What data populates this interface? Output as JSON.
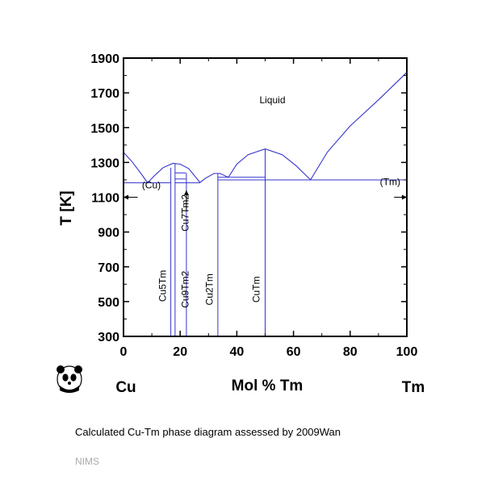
{
  "chart_data": {
    "type": "line",
    "ylabel": "T [K]",
    "xlabel": "Mol % Tm",
    "x_left_element": "Cu",
    "x_right_element": "Tm",
    "xlim": [
      0,
      100
    ],
    "ylim": [
      300,
      1900
    ],
    "xticks": [
      0,
      20,
      40,
      60,
      80,
      100
    ],
    "yticks": [
      300,
      500,
      700,
      900,
      1100,
      1300,
      1500,
      1700,
      1900
    ],
    "line_color": "#3333cc",
    "liquidus": [
      {
        "x": 0,
        "y": 1358
      },
      {
        "x": 3,
        "y": 1305
      },
      {
        "x": 6,
        "y": 1240
      },
      {
        "x": 8.5,
        "y": 1183
      },
      {
        "x": 11,
        "y": 1225
      },
      {
        "x": 14,
        "y": 1270
      },
      {
        "x": 17.5,
        "y": 1295
      },
      {
        "x": 20,
        "y": 1290
      },
      {
        "x": 23,
        "y": 1265
      },
      {
        "x": 27,
        "y": 1185
      },
      {
        "x": 29,
        "y": 1210
      },
      {
        "x": 32,
        "y": 1237
      },
      {
        "x": 34,
        "y": 1237
      },
      {
        "x": 37,
        "y": 1215
      },
      {
        "x": 40,
        "y": 1290
      },
      {
        "x": 44,
        "y": 1345
      },
      {
        "x": 50,
        "y": 1378
      },
      {
        "x": 56,
        "y": 1345
      },
      {
        "x": 61,
        "y": 1280
      },
      {
        "x": 66,
        "y": 1200
      },
      {
        "x": 72,
        "y": 1360
      },
      {
        "x": 80,
        "y": 1510
      },
      {
        "x": 90,
        "y": 1660
      },
      {
        "x": 100,
        "y": 1818
      }
    ],
    "invariant_lines": [
      {
        "x1": 0,
        "x2": 16.7,
        "y": 1183
      },
      {
        "x1": 18.2,
        "x2": 27,
        "y": 1183
      },
      {
        "x1": 18.2,
        "x2": 22,
        "y": 1205
      },
      {
        "x1": 18.2,
        "x2": 22,
        "y": 1240
      },
      {
        "x1": 33.3,
        "x2": 50,
        "y": 1215
      },
      {
        "x1": 33.3,
        "x2": 100,
        "y": 1200
      }
    ],
    "compound_lines": [
      {
        "name": "Cu5Tm",
        "x": 16.7,
        "ytop": 1270
      },
      {
        "name": "Cu9Tm2",
        "x": 18.2,
        "ytop": 1295
      },
      {
        "name": "Cu7Tm2",
        "x": 22.2,
        "ytop": 1240
      },
      {
        "name": "Cu2Tm",
        "x": 33.3,
        "ytop": 1237
      },
      {
        "name": "CuTm",
        "x": 50,
        "ytop": 1378
      }
    ],
    "phase_labels": [
      {
        "text": "Liquid",
        "x": 48,
        "y": 1640,
        "rotate": false
      },
      {
        "text": "(Cu)",
        "x": 6.5,
        "y": 1150,
        "rotate": false
      },
      {
        "text": "(Tm)",
        "x": 90.5,
        "y": 1170,
        "rotate": false
      },
      {
        "text": "Cu5Tm",
        "x": 15,
        "y": 590,
        "rotate": true
      },
      {
        "text": "Cu9Tm2",
        "x": 23,
        "y": 570,
        "rotate": true
      },
      {
        "text": "Cu7Tm2",
        "x": 23,
        "y": 1010,
        "rotate": true
      },
      {
        "text": "Cu2Tm",
        "x": 31.5,
        "y": 570,
        "rotate": true
      },
      {
        "text": "CuTm",
        "x": 48,
        "y": 570,
        "rotate": true
      }
    ],
    "arrows": [
      {
        "from_x": 5,
        "to_x": 0,
        "y": 1100,
        "label": "(Cu)"
      },
      {
        "from_x": 95.5,
        "to_x": 100,
        "y": 1100,
        "label": "(Tm)"
      },
      {
        "x": 22.2,
        "from_y": 1020,
        "to_y": 1140,
        "label": "Cu7Tm2"
      }
    ]
  },
  "caption": "Calculated Cu-Tm phase diagram assessed by 2009Wan",
  "footer": "NIMS",
  "logo_icon": "panda-icon"
}
